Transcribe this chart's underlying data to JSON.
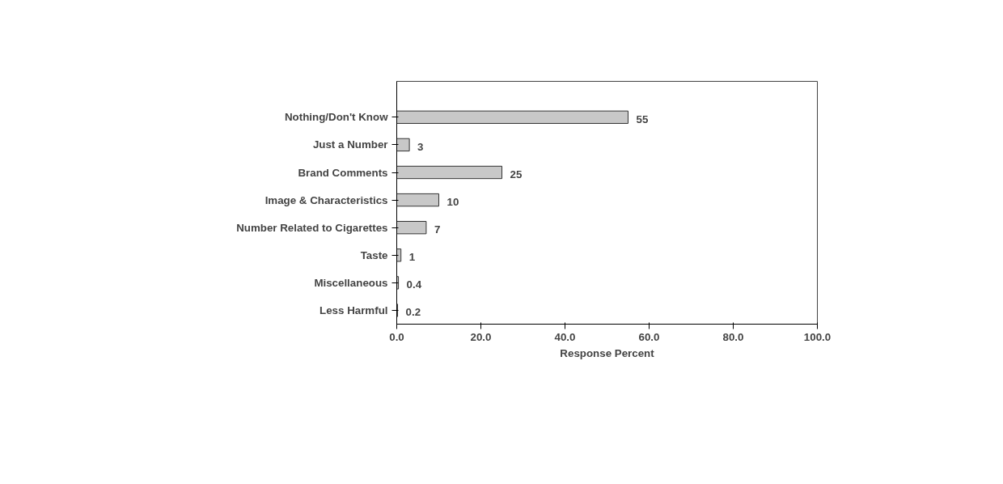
{
  "chart_data": {
    "type": "bar",
    "orientation": "horizontal",
    "xlabel": "Response Percent",
    "categories": [
      "Nothing/Don't Know",
      "Just a Number",
      "Brand Comments",
      "Image & Characteristics",
      "Number Related to Cigarettes",
      "Taste",
      "Miscellaneous",
      "Less Harmful"
    ],
    "values": [
      55,
      3,
      25,
      10,
      7,
      1,
      0.4,
      0.2
    ],
    "color": "#c8c8c8",
    "data_labels": true,
    "xlim": [
      0,
      100
    ],
    "xticks": [
      {
        "value": 0,
        "label": "0.0"
      },
      {
        "value": 20,
        "label": "20.0"
      },
      {
        "value": 40,
        "label": "40.0"
      },
      {
        "value": 60,
        "label": "60.0"
      },
      {
        "value": 80,
        "label": "80.0"
      },
      {
        "value": 100,
        "label": "100.0"
      }
    ],
    "grid": false
  }
}
